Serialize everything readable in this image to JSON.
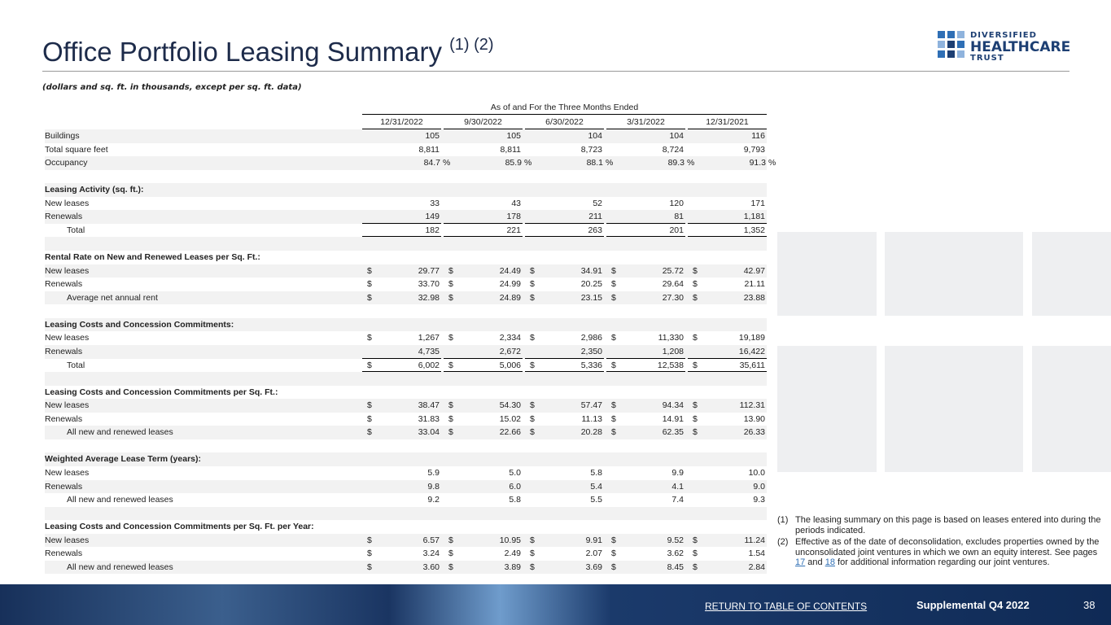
{
  "header": {
    "title": "Office Portfolio Leasing Summary",
    "title_notes": "(1) (2)",
    "logo": [
      "DIVERSIFIED",
      "HEALTHCARE",
      "TRUST"
    ],
    "subtitle": "(dollars and sq. ft. in thousands, except per sq. ft. data)"
  },
  "table": {
    "group_header": "As of and For the Three Months Ended",
    "columns": [
      "12/31/2022",
      "9/30/2022",
      "6/30/2022",
      "3/31/2022",
      "12/31/2021"
    ],
    "rows": [
      {
        "label": "Buildings",
        "values": [
          "105",
          "105",
          "104",
          "104",
          "116"
        ]
      },
      {
        "label": "Total square feet",
        "values": [
          "8,811",
          "8,811",
          "8,723",
          "8,724",
          "9,793"
        ]
      },
      {
        "label": "Occupancy",
        "suffix": "%",
        "values": [
          "84.7",
          "85.9",
          "88.1",
          "89.3",
          "91.3"
        ]
      },
      null,
      {
        "label": "Leasing Activity (sq. ft.):",
        "bold": true
      },
      {
        "label": "New leases",
        "values": [
          "33",
          "43",
          "52",
          "120",
          "171"
        ]
      },
      {
        "label": "Renewals",
        "rule": "single",
        "values": [
          "149",
          "178",
          "211",
          "81",
          "1,181"
        ]
      },
      {
        "label": "Total",
        "indent": true,
        "rule": "double",
        "values": [
          "182",
          "221",
          "263",
          "201",
          "1,352"
        ]
      },
      null,
      {
        "label": "Rental Rate on New and Renewed Leases per Sq. Ft.:",
        "bold": true
      },
      {
        "label": "New leases",
        "currency": "$",
        "values": [
          "29.77",
          "24.49",
          "34.91",
          "25.72",
          "42.97"
        ]
      },
      {
        "label": "Renewals",
        "currency": "$",
        "values": [
          "33.70",
          "24.99",
          "20.25",
          "29.64",
          "21.11"
        ]
      },
      {
        "label": "Average net annual rent",
        "indent": true,
        "currency": "$",
        "values": [
          "32.98",
          "24.89",
          "23.15",
          "27.30",
          "23.88"
        ]
      },
      null,
      {
        "label": "Leasing Costs and Concession Commitments:",
        "bold": true
      },
      {
        "label": "New leases",
        "currency": "$",
        "values": [
          "1,267",
          "2,334",
          "2,986",
          "11,330",
          "19,189"
        ]
      },
      {
        "label": "Renewals",
        "rule": "single",
        "values": [
          "4,735",
          "2,672",
          "2,350",
          "1,208",
          "16,422"
        ]
      },
      {
        "label": "Total",
        "indent": true,
        "currency": "$",
        "rule": "double",
        "values": [
          "6,002",
          "5,006",
          "5,336",
          "12,538",
          "35,611"
        ]
      },
      null,
      {
        "label": "Leasing Costs and Concession Commitments per Sq. Ft.:",
        "bold": true
      },
      {
        "label": "New leases",
        "currency": "$",
        "values": [
          "38.47",
          "54.30",
          "57.47",
          "94.34",
          "112.31"
        ]
      },
      {
        "label": "Renewals",
        "currency": "$",
        "values": [
          "31.83",
          "15.02",
          "11.13",
          "14.91",
          "13.90"
        ]
      },
      {
        "label": "All new and renewed leases",
        "indent": true,
        "currency": "$",
        "values": [
          "33.04",
          "22.66",
          "20.28",
          "62.35",
          "26.33"
        ]
      },
      null,
      {
        "label": "Weighted Average Lease Term (years):",
        "bold": true
      },
      {
        "label": "New leases",
        "values": [
          "5.9",
          "5.0",
          "5.8",
          "9.9",
          "10.0"
        ]
      },
      {
        "label": "Renewals",
        "values": [
          "9.8",
          "6.0",
          "5.4",
          "4.1",
          "9.0"
        ]
      },
      {
        "label": "All new and renewed leases",
        "indent": true,
        "values": [
          "9.2",
          "5.8",
          "5.5",
          "7.4",
          "9.3"
        ]
      },
      null,
      {
        "label": "Leasing Costs and Concession Commitments per Sq. Ft. per Year:",
        "bold": true
      },
      {
        "label": "New leases",
        "currency": "$",
        "values": [
          "6.57",
          "10.95",
          "9.91",
          "9.52",
          "11.24"
        ]
      },
      {
        "label": "Renewals",
        "currency": "$",
        "values": [
          "3.24",
          "2.49",
          "2.07",
          "3.62",
          "1.54"
        ]
      },
      {
        "label": "All new and renewed leases",
        "indent": true,
        "currency": "$",
        "values": [
          "3.60",
          "3.89",
          "3.69",
          "8.45",
          "2.84"
        ]
      }
    ]
  },
  "footnotes": [
    {
      "marker": "(1)",
      "parts": [
        {
          "text": "The leasing summary on this page is based on leases entered into during the periods indicated."
        }
      ]
    },
    {
      "marker": "(2)",
      "parts": [
        {
          "text": "Effective as of the date of deconsolidation, excludes properties owned by the unconsolidated joint ventures in which we own an equity interest. See pages "
        },
        {
          "link": "17"
        },
        {
          "text": " and "
        },
        {
          "link": "18"
        },
        {
          "text": " for additional information regarding our joint ventures."
        }
      ]
    }
  ],
  "footer": {
    "link": "RETURN TO TABLE OF CONTENTS",
    "report": "Supplemental Q4 2022",
    "page": "38"
  }
}
